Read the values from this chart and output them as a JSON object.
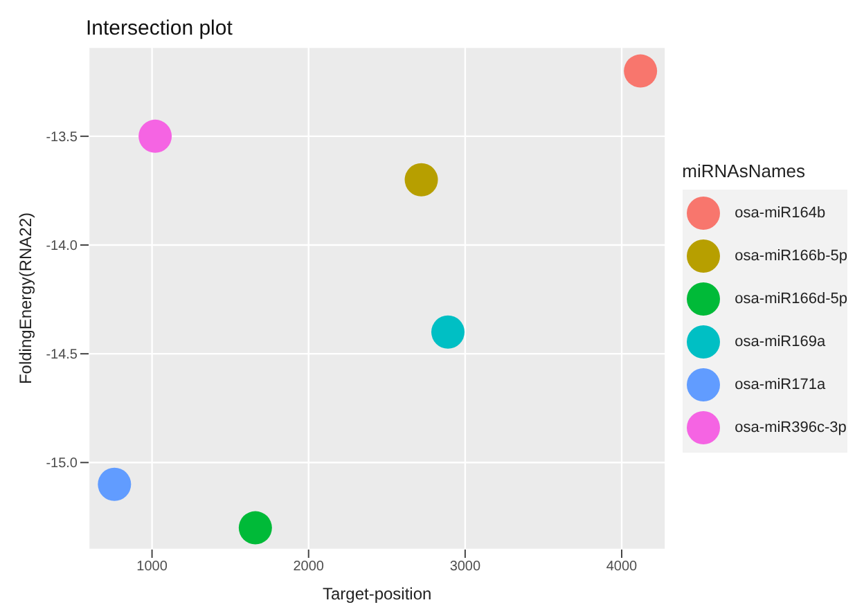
{
  "chart_data": {
    "type": "scatter",
    "title": "Intersection plot",
    "xlabel": "Target-position",
    "ylabel": "FoldingEnergy(RNA22)",
    "legend_title": "miRNAsNames",
    "xlim": [
      595,
      4280
    ],
    "xticks": [
      1000,
      2000,
      3000,
      4000
    ],
    "ylim": [
      -15.4,
      -13.09
    ],
    "yticks": [
      -13.5,
      {
        "value": -14,
        "label": "-14.0"
      },
      -14.5,
      {
        "value": -15,
        "label": "-15.0"
      }
    ],
    "grid": true,
    "legend": "right",
    "marker": "circle",
    "series": [
      {
        "name": "osa-miR164b",
        "color": "#f8766d",
        "x": [
          4120
        ],
        "values": [
          -13.2
        ]
      },
      {
        "name": "osa-miR166b-5p",
        "color": "#b79f00",
        "x": [
          2720
        ],
        "values": [
          -13.7
        ]
      },
      {
        "name": "osa-miR166d-5p",
        "color": "#00ba38",
        "x": [
          1660
        ],
        "values": [
          -15.3
        ]
      },
      {
        "name": "osa-miR169a",
        "color": "#00bfc4",
        "x": [
          2890
        ],
        "values": [
          -14.4
        ]
      },
      {
        "name": "osa-miR171a",
        "color": "#619cff",
        "x": [
          760
        ],
        "values": [
          -15.1
        ]
      },
      {
        "name": "osa-miR396c-3p",
        "color": "#f564e3",
        "x": [
          1020
        ],
        "values": [
          -13.5
        ]
      }
    ]
  }
}
